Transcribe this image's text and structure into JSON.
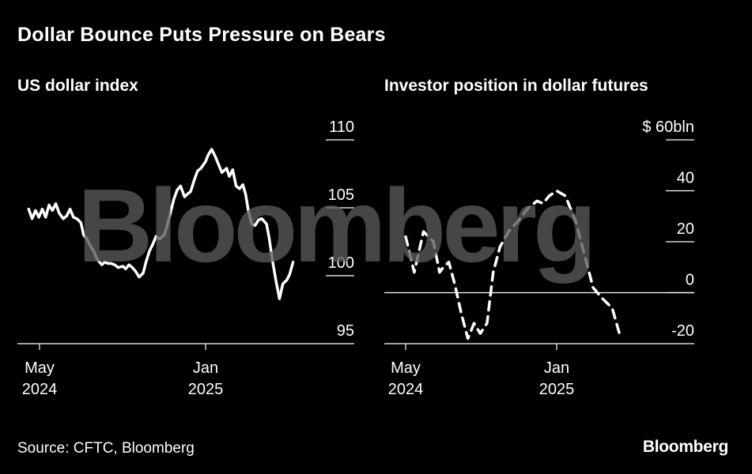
{
  "title": "Dollar Bounce Puts Pressure on Bears",
  "source": "Source: CFTC, Bloomberg",
  "logo": "Bloomberg",
  "watermark": "Bloomberg",
  "colors": {
    "background": "#000000",
    "line": "#ffffff",
    "watermark": "#5a5a5a"
  },
  "chart_data": [
    {
      "type": "line",
      "title": "US dollar index",
      "x_tick_labels": [
        {
          "month": "May",
          "year": "2024",
          "date": "2024-05-01"
        },
        {
          "month": "Jan",
          "year": "2025",
          "date": "2025-01-01"
        }
      ],
      "y_ticks": [
        110,
        105,
        100,
        95
      ],
      "y_tick_labels": [
        "110",
        "105",
        "100",
        "95"
      ],
      "ylim": [
        95,
        110
      ],
      "grid": "horizontal",
      "line_style": "solid",
      "series": [
        {
          "points": [
            [
              "2024-04-15",
              104.9
            ],
            [
              "2024-04-20",
              104.2
            ],
            [
              "2024-04-25",
              104.8
            ],
            [
              "2024-04-30",
              104.3
            ],
            [
              "2024-05-05",
              104.9
            ],
            [
              "2024-05-10",
              104.3
            ],
            [
              "2024-05-15",
              105.2
            ],
            [
              "2024-05-20",
              104.8
            ],
            [
              "2024-05-25",
              105.3
            ],
            [
              "2024-05-30",
              104.6
            ],
            [
              "2024-06-05",
              104.2
            ],
            [
              "2024-06-10",
              104.4
            ],
            [
              "2024-06-15",
              104.9
            ],
            [
              "2024-06-20",
              104.3
            ],
            [
              "2024-06-25",
              104.2
            ],
            [
              "2024-07-01",
              103.9
            ],
            [
              "2024-07-05",
              103.0
            ],
            [
              "2024-07-10",
              102.7
            ],
            [
              "2024-07-15",
              102.2
            ],
            [
              "2024-07-20",
              101.8
            ],
            [
              "2024-07-25",
              101.2
            ],
            [
              "2024-08-01",
              100.8
            ],
            [
              "2024-08-05",
              101.0
            ],
            [
              "2024-08-10",
              100.9
            ],
            [
              "2024-08-15",
              100.9
            ],
            [
              "2024-08-20",
              100.8
            ],
            [
              "2024-08-25",
              100.6
            ],
            [
              "2024-09-01",
              100.7
            ],
            [
              "2024-09-05",
              100.5
            ],
            [
              "2024-09-10",
              100.8
            ],
            [
              "2024-09-15",
              100.6
            ],
            [
              "2024-09-20",
              100.3
            ],
            [
              "2024-09-25",
              99.9
            ],
            [
              "2024-10-01",
              100.2
            ],
            [
              "2024-10-05",
              101.0
            ],
            [
              "2024-10-10",
              101.8
            ],
            [
              "2024-10-15",
              102.3
            ],
            [
              "2024-10-20",
              102.9
            ],
            [
              "2024-10-25",
              102.7
            ],
            [
              "2024-11-01",
              103.0
            ],
            [
              "2024-11-05",
              103.6
            ],
            [
              "2024-11-10",
              104.6
            ],
            [
              "2024-11-15",
              105.6
            ],
            [
              "2024-11-20",
              106.3
            ],
            [
              "2024-11-25",
              106.6
            ],
            [
              "2024-12-01",
              105.8
            ],
            [
              "2024-12-05",
              106.0
            ],
            [
              "2024-12-10",
              106.2
            ],
            [
              "2024-12-15",
              107.0
            ],
            [
              "2024-12-20",
              107.7
            ],
            [
              "2024-12-25",
              107.9
            ],
            [
              "2025-01-01",
              108.4
            ],
            [
              "2025-01-05",
              108.9
            ],
            [
              "2025-01-10",
              109.3
            ],
            [
              "2025-01-15",
              108.8
            ],
            [
              "2025-01-20",
              108.2
            ],
            [
              "2025-01-25",
              107.6
            ],
            [
              "2025-02-01",
              107.9
            ],
            [
              "2025-02-05",
              107.3
            ],
            [
              "2025-02-10",
              107.8
            ],
            [
              "2025-02-15",
              106.6
            ],
            [
              "2025-02-20",
              106.4
            ],
            [
              "2025-02-25",
              106.7
            ],
            [
              "2025-03-01",
              106.0
            ],
            [
              "2025-03-05",
              104.8
            ],
            [
              "2025-03-10",
              103.8
            ],
            [
              "2025-03-15",
              103.7
            ],
            [
              "2025-03-20",
              104.1
            ],
            [
              "2025-03-25",
              104.2
            ],
            [
              "2025-04-01",
              103.8
            ],
            [
              "2025-04-05",
              102.7
            ],
            [
              "2025-04-10",
              101.0
            ],
            [
              "2025-04-15",
              99.6
            ],
            [
              "2025-04-20",
              98.3
            ],
            [
              "2025-04-25",
              99.4
            ],
            [
              "2025-05-01",
              99.7
            ],
            [
              "2025-05-05",
              100.1
            ],
            [
              "2025-05-10",
              101.0
            ]
          ]
        }
      ]
    },
    {
      "type": "line",
      "title": "Investor position in dollar futures",
      "x_tick_labels": [
        {
          "month": "May",
          "year": "2024",
          "date": "2024-05-01"
        },
        {
          "month": "Jan",
          "year": "2025",
          "date": "2025-01-01"
        }
      ],
      "y_ticks": [
        60,
        40,
        20,
        0,
        -20
      ],
      "y_tick_labels": [
        "$ 60bln",
        "40",
        "20",
        "0",
        "-20"
      ],
      "ylim": [
        -20,
        60
      ],
      "grid": "horizontal",
      "line_style": "dashed",
      "series": [
        {
          "points": [
            [
              "2024-05-01",
              22
            ],
            [
              "2024-05-15",
              8
            ],
            [
              "2024-05-30",
              24
            ],
            [
              "2024-06-15",
              20
            ],
            [
              "2024-06-25",
              8
            ],
            [
              "2024-07-01",
              10
            ],
            [
              "2024-07-10",
              12
            ],
            [
              "2024-07-20",
              3
            ],
            [
              "2024-07-30",
              -8
            ],
            [
              "2024-08-10",
              -18
            ],
            [
              "2024-08-20",
              -12
            ],
            [
              "2024-08-30",
              -16
            ],
            [
              "2024-09-10",
              -12
            ],
            [
              "2024-09-20",
              8
            ],
            [
              "2024-10-01",
              18
            ],
            [
              "2024-10-15",
              24
            ],
            [
              "2024-10-30",
              28
            ],
            [
              "2024-11-15",
              33
            ],
            [
              "2024-11-30",
              36
            ],
            [
              "2024-12-10",
              35
            ],
            [
              "2024-12-20",
              38
            ],
            [
              "2025-01-01",
              40
            ],
            [
              "2025-01-15",
              38
            ],
            [
              "2025-02-01",
              28
            ],
            [
              "2025-02-15",
              15
            ],
            [
              "2025-03-01",
              2
            ],
            [
              "2025-03-15",
              -2
            ],
            [
              "2025-04-01",
              -6
            ],
            [
              "2025-04-15",
              -18
            ]
          ]
        }
      ]
    }
  ]
}
